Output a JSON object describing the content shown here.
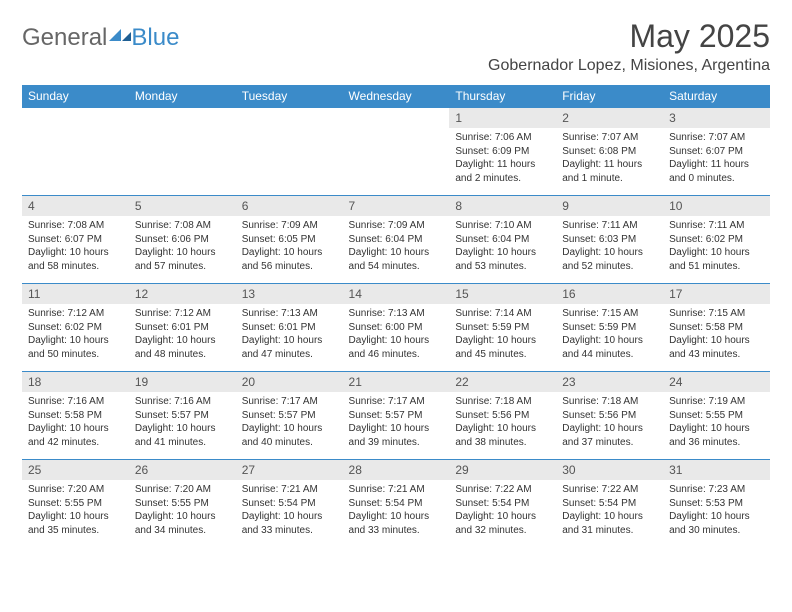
{
  "brand": {
    "general": "General",
    "blue": "Blue"
  },
  "title": "May 2025",
  "location": "Gobernador Lopez, Misiones, Argentina",
  "colors": {
    "accent": "#3b8bc9",
    "header_bg": "#3b8bc9",
    "header_text": "#ffffff",
    "daynum_bg": "#e9e9e9",
    "text": "#333333",
    "logo_gray": "#666666",
    "background": "#ffffff"
  },
  "dayNames": [
    "Sunday",
    "Monday",
    "Tuesday",
    "Wednesday",
    "Thursday",
    "Friday",
    "Saturday"
  ],
  "weeks": [
    [
      {
        "n": "",
        "lines": []
      },
      {
        "n": "",
        "lines": []
      },
      {
        "n": "",
        "lines": []
      },
      {
        "n": "",
        "lines": []
      },
      {
        "n": "1",
        "lines": [
          "Sunrise: 7:06 AM",
          "Sunset: 6:09 PM",
          "Daylight: 11 hours",
          "and 2 minutes."
        ]
      },
      {
        "n": "2",
        "lines": [
          "Sunrise: 7:07 AM",
          "Sunset: 6:08 PM",
          "Daylight: 11 hours",
          "and 1 minute."
        ]
      },
      {
        "n": "3",
        "lines": [
          "Sunrise: 7:07 AM",
          "Sunset: 6:07 PM",
          "Daylight: 11 hours",
          "and 0 minutes."
        ]
      }
    ],
    [
      {
        "n": "4",
        "lines": [
          "Sunrise: 7:08 AM",
          "Sunset: 6:07 PM",
          "Daylight: 10 hours",
          "and 58 minutes."
        ]
      },
      {
        "n": "5",
        "lines": [
          "Sunrise: 7:08 AM",
          "Sunset: 6:06 PM",
          "Daylight: 10 hours",
          "and 57 minutes."
        ]
      },
      {
        "n": "6",
        "lines": [
          "Sunrise: 7:09 AM",
          "Sunset: 6:05 PM",
          "Daylight: 10 hours",
          "and 56 minutes."
        ]
      },
      {
        "n": "7",
        "lines": [
          "Sunrise: 7:09 AM",
          "Sunset: 6:04 PM",
          "Daylight: 10 hours",
          "and 54 minutes."
        ]
      },
      {
        "n": "8",
        "lines": [
          "Sunrise: 7:10 AM",
          "Sunset: 6:04 PM",
          "Daylight: 10 hours",
          "and 53 minutes."
        ]
      },
      {
        "n": "9",
        "lines": [
          "Sunrise: 7:11 AM",
          "Sunset: 6:03 PM",
          "Daylight: 10 hours",
          "and 52 minutes."
        ]
      },
      {
        "n": "10",
        "lines": [
          "Sunrise: 7:11 AM",
          "Sunset: 6:02 PM",
          "Daylight: 10 hours",
          "and 51 minutes."
        ]
      }
    ],
    [
      {
        "n": "11",
        "lines": [
          "Sunrise: 7:12 AM",
          "Sunset: 6:02 PM",
          "Daylight: 10 hours",
          "and 50 minutes."
        ]
      },
      {
        "n": "12",
        "lines": [
          "Sunrise: 7:12 AM",
          "Sunset: 6:01 PM",
          "Daylight: 10 hours",
          "and 48 minutes."
        ]
      },
      {
        "n": "13",
        "lines": [
          "Sunrise: 7:13 AM",
          "Sunset: 6:01 PM",
          "Daylight: 10 hours",
          "and 47 minutes."
        ]
      },
      {
        "n": "14",
        "lines": [
          "Sunrise: 7:13 AM",
          "Sunset: 6:00 PM",
          "Daylight: 10 hours",
          "and 46 minutes."
        ]
      },
      {
        "n": "15",
        "lines": [
          "Sunrise: 7:14 AM",
          "Sunset: 5:59 PM",
          "Daylight: 10 hours",
          "and 45 minutes."
        ]
      },
      {
        "n": "16",
        "lines": [
          "Sunrise: 7:15 AM",
          "Sunset: 5:59 PM",
          "Daylight: 10 hours",
          "and 44 minutes."
        ]
      },
      {
        "n": "17",
        "lines": [
          "Sunrise: 7:15 AM",
          "Sunset: 5:58 PM",
          "Daylight: 10 hours",
          "and 43 minutes."
        ]
      }
    ],
    [
      {
        "n": "18",
        "lines": [
          "Sunrise: 7:16 AM",
          "Sunset: 5:58 PM",
          "Daylight: 10 hours",
          "and 42 minutes."
        ]
      },
      {
        "n": "19",
        "lines": [
          "Sunrise: 7:16 AM",
          "Sunset: 5:57 PM",
          "Daylight: 10 hours",
          "and 41 minutes."
        ]
      },
      {
        "n": "20",
        "lines": [
          "Sunrise: 7:17 AM",
          "Sunset: 5:57 PM",
          "Daylight: 10 hours",
          "and 40 minutes."
        ]
      },
      {
        "n": "21",
        "lines": [
          "Sunrise: 7:17 AM",
          "Sunset: 5:57 PM",
          "Daylight: 10 hours",
          "and 39 minutes."
        ]
      },
      {
        "n": "22",
        "lines": [
          "Sunrise: 7:18 AM",
          "Sunset: 5:56 PM",
          "Daylight: 10 hours",
          "and 38 minutes."
        ]
      },
      {
        "n": "23",
        "lines": [
          "Sunrise: 7:18 AM",
          "Sunset: 5:56 PM",
          "Daylight: 10 hours",
          "and 37 minutes."
        ]
      },
      {
        "n": "24",
        "lines": [
          "Sunrise: 7:19 AM",
          "Sunset: 5:55 PM",
          "Daylight: 10 hours",
          "and 36 minutes."
        ]
      }
    ],
    [
      {
        "n": "25",
        "lines": [
          "Sunrise: 7:20 AM",
          "Sunset: 5:55 PM",
          "Daylight: 10 hours",
          "and 35 minutes."
        ]
      },
      {
        "n": "26",
        "lines": [
          "Sunrise: 7:20 AM",
          "Sunset: 5:55 PM",
          "Daylight: 10 hours",
          "and 34 minutes."
        ]
      },
      {
        "n": "27",
        "lines": [
          "Sunrise: 7:21 AM",
          "Sunset: 5:54 PM",
          "Daylight: 10 hours",
          "and 33 minutes."
        ]
      },
      {
        "n": "28",
        "lines": [
          "Sunrise: 7:21 AM",
          "Sunset: 5:54 PM",
          "Daylight: 10 hours",
          "and 33 minutes."
        ]
      },
      {
        "n": "29",
        "lines": [
          "Sunrise: 7:22 AM",
          "Sunset: 5:54 PM",
          "Daylight: 10 hours",
          "and 32 minutes."
        ]
      },
      {
        "n": "30",
        "lines": [
          "Sunrise: 7:22 AM",
          "Sunset: 5:54 PM",
          "Daylight: 10 hours",
          "and 31 minutes."
        ]
      },
      {
        "n": "31",
        "lines": [
          "Sunrise: 7:23 AM",
          "Sunset: 5:53 PM",
          "Daylight: 10 hours",
          "and 30 minutes."
        ]
      }
    ]
  ]
}
